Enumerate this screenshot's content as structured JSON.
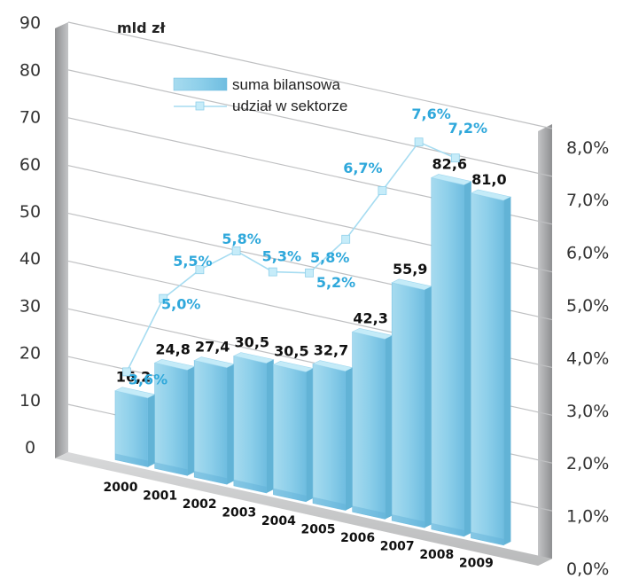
{
  "chart_data": {
    "type": "bar",
    "unit_label": "mld zł",
    "categories": [
      "2000",
      "2001",
      "2002",
      "2003",
      "2004",
      "2005",
      "2006",
      "2007",
      "2008",
      "2009"
    ],
    "series": [
      {
        "name": "suma bilansowa",
        "type": "bar",
        "axis": "left",
        "values": [
          16.2,
          24.8,
          27.4,
          30.5,
          30.5,
          32.7,
          42.3,
          55.9,
          82.6,
          81.0
        ],
        "labels": [
          "16,2",
          "24,8",
          "27,4",
          "30,5",
          "30,5",
          "32,7",
          "42,3",
          "55,9",
          "82,6",
          "81,0"
        ]
      },
      {
        "name": "udział w sektorze",
        "type": "line",
        "axis": "right",
        "values": [
          3.6,
          5.0,
          5.5,
          5.8,
          5.3,
          5.2,
          5.8,
          6.7,
          7.6,
          7.2
        ],
        "labels": [
          "3,6%",
          "5,0%",
          "5,5%",
          "5,8%",
          "5,3%",
          "5,2%",
          "5,8%",
          "6,7%",
          "7,6%",
          "7,2%"
        ]
      }
    ],
    "left_axis": {
      "ticks": [
        "0",
        "10",
        "20",
        "30",
        "40",
        "50",
        "60",
        "70",
        "80",
        "90"
      ],
      "ylim": [
        0,
        90
      ]
    },
    "right_axis": {
      "ticks": [
        "0,0%",
        "1,0%",
        "2,0%",
        "3,0%",
        "4,0%",
        "5,0%",
        "6,0%",
        "7,0%",
        "8,0%"
      ],
      "ylim": [
        0,
        8
      ]
    },
    "legend_position": "top-center",
    "grid": true,
    "colors": {
      "bar": "#8fd0ea",
      "bar_dark": "#62b3d6",
      "bar_top": "#c4ebf8",
      "line": "#a6dcf1",
      "marker": "#c6ecf9",
      "line_label": "#2fa8db",
      "panel": "#a9aaac"
    }
  }
}
